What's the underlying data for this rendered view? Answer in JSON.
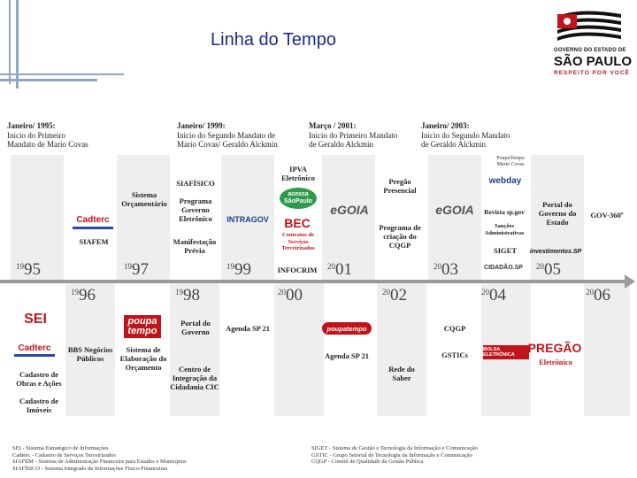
{
  "header": {
    "title": "Linha do Tempo"
  },
  "logo": {
    "line1": "GOVERNO DO ESTADO DE",
    "line2": "SÃO PAULO",
    "line3": "RESPEITO POR VOCÊ"
  },
  "milestones": [
    {
      "title": "Janeiro/ 1995:",
      "text1": "Inicio do Primeiro",
      "text2": "Mandato de Mario Covas"
    },
    {
      "title": "Janeiro/ 1999:",
      "text1": "Inicio do Segundo Mandato de",
      "text2": "Mario Covas/ Geraldo Alckmin"
    },
    {
      "title": "Março / 2001:",
      "text1": "Inicio do Primeiro Mandato",
      "text2": "de Geraldo Alckmin"
    },
    {
      "title": "Janeiro/ 2003:",
      "text1": "Inicio do Segundo Mandato",
      "text2": "de Geraldo Alckmin"
    }
  ],
  "years": {
    "y1995": {
      "a": "19",
      "b": "95"
    },
    "y1996": {
      "a": "19",
      "b": "96"
    },
    "y1997": {
      "a": "19",
      "b": "97"
    },
    "y1998": {
      "a": "19",
      "b": "98"
    },
    "y1999": {
      "a": "19",
      "b": "99"
    },
    "y2000": {
      "a": "20",
      "b": "00"
    },
    "y2001": {
      "a": "20",
      "b": "01"
    },
    "y2002": {
      "a": "20",
      "b": "02"
    },
    "y2003": {
      "a": "20",
      "b": "03"
    },
    "y2004": {
      "a": "20",
      "b": "04"
    },
    "y2005": {
      "a": "20",
      "b": "05"
    },
    "y2006": {
      "a": "20",
      "b": "06"
    }
  },
  "above": {
    "cadterc": "Cadterc",
    "siafem": "SIAFEM",
    "sistema_orcamentario": "Sistema Orçamentário",
    "siafisico": "SIAFÍSICO",
    "programa_governo": "Programa Governo Eletrônico",
    "intragov": "INTRAGOV",
    "manifestacao": "Manifestação Prévia",
    "ipva": "IPVA Eletrônico",
    "acessa": "acessa SãoPaulo",
    "bec": "BEC",
    "bec_sub": "Contratos de Serviços Terceirizados",
    "infocrim": "INFOCRIM",
    "egoia1": "eGOIA",
    "pregao_presencial": "Pregão Presencial",
    "programa_cqgp": "Programa de criação do CQGP",
    "egoia2": "eGOIA",
    "poupatempo_small": "PoupaTempo Marie Covas",
    "webday": "webday",
    "revista": "Revista sp.gov",
    "sancoes": "Sanções Administrativas",
    "siget": "SIGET",
    "cidadao": "CIDADÃO.SP",
    "portal_estado": "Portal do Governo do Estado",
    "investimentos": "investimentos.SP",
    "gov360": "GOV-360º"
  },
  "below": {
    "sei": "SEI",
    "cadterc": "Cadterc",
    "cadastro_obras": "Cadastro de Obras e Ações",
    "cadastro_imoveis": "Cadastro de Imóveis",
    "bbs": "BBS Negócios Públicos",
    "poupa": "poupa",
    "tempo": "tempo",
    "sistema_elab": "Sistema de Elaboração do Orçamento",
    "portal_governo": "Portal do Governo",
    "centro_integracao": "Centro de Integração da Cidadania CIC",
    "agenda1": "Agenda SP 21",
    "poupatempo_red": "poupatempo",
    "agenda2": "Agenda SP 21",
    "rede_saber": "Rede do Saber",
    "cqgp": "CQGP",
    "gstics": "GSTICs",
    "bolsa": "BOLSA ELETRÔNICA",
    "pregao_logo": "PREGÃO",
    "pregao_eletronico": "Eletrônico"
  },
  "footer": {
    "left": [
      "SEI - Sistema Estratégico de Informações",
      "Cadterc - Cadastro de Serviços Terceirizados",
      "SIAFEM - Sistema de Administração Financeira para Estados e Municípios",
      "SIAFÍSICO - Sistema Integrado de Informações Físico-Financeiras"
    ],
    "right": [
      "SIGET - Sistema de Gestão e Tecnologia da Informação e Comunicação",
      "GSTIC - Grupo Setorial de Tecnologia da Informação e Comunicação",
      "CQGP - Comitê de Qualidade da Gestão Pública"
    ]
  },
  "colors": {
    "title": "#1a2a8c",
    "red": "#c0141a",
    "axis": "#9a9a9a",
    "column": "#eeeeee",
    "deco": "#8fa6c8"
  }
}
